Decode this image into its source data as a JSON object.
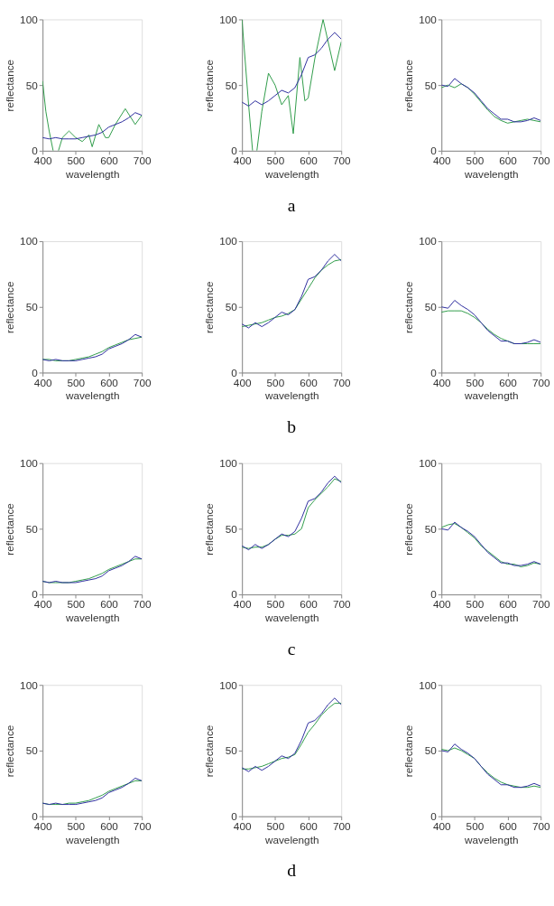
{
  "chart_data": [
    {
      "type": "line",
      "xlabel": "wavelength",
      "ylabel": "reflectance",
      "xlim": [
        400,
        700
      ],
      "ylim": [
        0,
        100
      ],
      "xticks": [
        400,
        500,
        600,
        700
      ],
      "yticks": [
        0,
        50,
        100
      ],
      "x": [
        400,
        420,
        440,
        460,
        480,
        500,
        520,
        540,
        560,
        580,
        600,
        620,
        640,
        660,
        680,
        700
      ],
      "series": [
        {
          "color": "#2d2d9e",
          "values": [
            10,
            9,
            10,
            9,
            9,
            9,
            10,
            11,
            12,
            14,
            18,
            20,
            22,
            25,
            29,
            27
          ]
        },
        {
          "color": "#2e9b48",
          "x": [
            400,
            410,
            420,
            432,
            440,
            448,
            460,
            480,
            500,
            520,
            540,
            550,
            570,
            590,
            600,
            620,
            650,
            680,
            700
          ],
          "values": [
            53,
            30,
            15,
            0,
            null,
            0,
            10,
            15,
            10,
            7,
            12,
            3,
            20,
            10,
            10,
            20,
            32,
            20,
            27
          ]
        }
      ]
    },
    {
      "type": "line",
      "xlabel": "wavelength",
      "ylabel": "reflectance",
      "xlim": [
        400,
        700
      ],
      "ylim": [
        0,
        100
      ],
      "xticks": [
        400,
        500,
        600,
        700
      ],
      "yticks": [
        0,
        50,
        100
      ],
      "annotations": [
        "a"
      ],
      "x": [
        400,
        420,
        440,
        460,
        480,
        500,
        520,
        540,
        560,
        580,
        600,
        620,
        640,
        660,
        680,
        700
      ],
      "series": [
        {
          "color": "#2d2d9e",
          "values": [
            37,
            34,
            38,
            35,
            38,
            42,
            46,
            44,
            48,
            58,
            71,
            73,
            78,
            85,
            90,
            85
          ]
        },
        {
          "color": "#2e9b48",
          "x": [
            400,
            420,
            432,
            438,
            445,
            460,
            480,
            500,
            520,
            540,
            555,
            575,
            590,
            600,
            620,
            645,
            680,
            700
          ],
          "values": [
            100,
            35,
            0,
            null,
            0,
            30,
            59,
            50,
            35,
            42,
            13,
            71,
            38,
            40,
            70,
            100,
            61,
            83
          ]
        }
      ]
    },
    {
      "type": "line",
      "xlabel": "wavelength",
      "ylabel": "reflectance",
      "xlim": [
        400,
        700
      ],
      "ylim": [
        0,
        100
      ],
      "xticks": [
        400,
        500,
        600,
        700
      ],
      "yticks": [
        0,
        50,
        100
      ],
      "x": [
        400,
        420,
        440,
        460,
        480,
        500,
        520,
        540,
        560,
        580,
        600,
        620,
        640,
        660,
        680,
        700
      ],
      "series": [
        {
          "color": "#2d2d9e",
          "values": [
            50,
            49,
            55,
            51,
            48,
            44,
            38,
            32,
            28,
            24,
            24,
            22,
            22,
            23,
            25,
            23
          ]
        },
        {
          "color": "#2e9b48",
          "values": [
            48,
            50,
            48,
            51,
            48,
            43,
            37,
            31,
            26,
            23,
            21,
            22,
            23,
            24,
            23,
            22
          ]
        }
      ]
    },
    {
      "type": "line",
      "xlabel": "wavelength",
      "ylabel": "reflectance",
      "xlim": [
        400,
        700
      ],
      "ylim": [
        0,
        100
      ],
      "xticks": [
        400,
        500,
        600,
        700
      ],
      "yticks": [
        0,
        50,
        100
      ],
      "x": [
        400,
        420,
        440,
        460,
        480,
        500,
        520,
        540,
        560,
        580,
        600,
        620,
        640,
        660,
        680,
        700
      ],
      "series": [
        {
          "color": "#2d2d9e",
          "values": [
            10,
            9,
            10,
            9,
            9,
            9,
            10,
            11,
            12,
            14,
            18,
            20,
            22,
            25,
            29,
            27
          ]
        },
        {
          "color": "#2e9b48",
          "values": [
            10,
            10,
            9,
            9,
            9,
            10,
            11,
            12,
            14,
            16,
            19,
            21,
            23,
            25,
            26,
            27
          ]
        }
      ]
    },
    {
      "type": "line",
      "xlabel": "wavelength",
      "ylabel": "reflectance",
      "xlim": [
        400,
        700
      ],
      "ylim": [
        0,
        100
      ],
      "xticks": [
        400,
        500,
        600,
        700
      ],
      "yticks": [
        0,
        50,
        100
      ],
      "annotations": [
        "b"
      ],
      "x": [
        400,
        420,
        440,
        460,
        480,
        500,
        520,
        540,
        560,
        580,
        600,
        620,
        640,
        660,
        680,
        700
      ],
      "series": [
        {
          "color": "#2d2d9e",
          "values": [
            37,
            34,
            38,
            35,
            38,
            42,
            46,
            44,
            48,
            58,
            71,
            73,
            78,
            85,
            90,
            85
          ]
        },
        {
          "color": "#2e9b48",
          "values": [
            35,
            36,
            37,
            38,
            40,
            42,
            43,
            45,
            48,
            56,
            64,
            72,
            78,
            82,
            85,
            86
          ]
        }
      ]
    },
    {
      "type": "line",
      "xlabel": "wavelength",
      "ylabel": "reflectance",
      "xlim": [
        400,
        700
      ],
      "ylim": [
        0,
        100
      ],
      "xticks": [
        400,
        500,
        600,
        700
      ],
      "yticks": [
        0,
        50,
        100
      ],
      "x": [
        400,
        420,
        440,
        460,
        480,
        500,
        520,
        540,
        560,
        580,
        600,
        620,
        640,
        660,
        680,
        700
      ],
      "series": [
        {
          "color": "#2d2d9e",
          "values": [
            50,
            49,
            55,
            51,
            48,
            44,
            38,
            32,
            28,
            24,
            24,
            22,
            22,
            23,
            25,
            23
          ]
        },
        {
          "color": "#2e9b48",
          "values": [
            46,
            47,
            47,
            47,
            45,
            42,
            38,
            33,
            29,
            26,
            24,
            22,
            22,
            22,
            22,
            22
          ]
        }
      ]
    },
    {
      "type": "line",
      "xlabel": "wavelength",
      "ylabel": "reflectance",
      "xlim": [
        400,
        700
      ],
      "ylim": [
        0,
        100
      ],
      "xticks": [
        400,
        500,
        600,
        700
      ],
      "yticks": [
        0,
        50,
        100
      ],
      "x": [
        400,
        420,
        440,
        460,
        480,
        500,
        520,
        540,
        560,
        580,
        600,
        620,
        640,
        660,
        680,
        700
      ],
      "series": [
        {
          "color": "#2d2d9e",
          "values": [
            10,
            9,
            10,
            9,
            9,
            9,
            10,
            11,
            12,
            14,
            18,
            20,
            22,
            25,
            29,
            27
          ]
        },
        {
          "color": "#2e9b48",
          "values": [
            10,
            9,
            9,
            9,
            9,
            10,
            11,
            12,
            14,
            16,
            19,
            21,
            23,
            25,
            27,
            27
          ]
        }
      ]
    },
    {
      "type": "line",
      "xlabel": "wavelength",
      "ylabel": "reflectance",
      "xlim": [
        400,
        700
      ],
      "ylim": [
        0,
        100
      ],
      "xticks": [
        400,
        500,
        600,
        700
      ],
      "yticks": [
        0,
        50,
        100
      ],
      "annotations": [
        "c"
      ],
      "x": [
        400,
        420,
        440,
        460,
        480,
        500,
        520,
        540,
        560,
        580,
        600,
        620,
        640,
        660,
        680,
        700
      ],
      "series": [
        {
          "color": "#2d2d9e",
          "values": [
            37,
            34,
            38,
            35,
            38,
            42,
            46,
            44,
            48,
            58,
            71,
            73,
            78,
            85,
            90,
            85
          ]
        },
        {
          "color": "#2e9b48",
          "values": [
            36,
            35,
            36,
            36,
            38,
            42,
            45,
            45,
            46,
            50,
            66,
            72,
            77,
            82,
            88,
            86
          ]
        }
      ]
    },
    {
      "type": "line",
      "xlabel": "wavelength",
      "ylabel": "reflectance",
      "xlim": [
        400,
        700
      ],
      "ylim": [
        0,
        100
      ],
      "xticks": [
        400,
        500,
        600,
        700
      ],
      "yticks": [
        0,
        50,
        100
      ],
      "x": [
        400,
        420,
        440,
        460,
        480,
        500,
        520,
        540,
        560,
        580,
        600,
        620,
        640,
        660,
        680,
        700
      ],
      "series": [
        {
          "color": "#2d2d9e",
          "values": [
            50,
            49,
            55,
            51,
            48,
            44,
            38,
            32,
            28,
            24,
            24,
            22,
            22,
            23,
            25,
            23
          ]
        },
        {
          "color": "#2e9b48",
          "values": [
            51,
            53,
            54,
            51,
            47,
            43,
            37,
            33,
            29,
            25,
            23,
            23,
            21,
            22,
            24,
            23
          ]
        }
      ]
    },
    {
      "type": "line",
      "xlabel": "wavelength",
      "ylabel": "reflectance",
      "xlim": [
        400,
        700
      ],
      "ylim": [
        0,
        100
      ],
      "xticks": [
        400,
        500,
        600,
        700
      ],
      "yticks": [
        0,
        50,
        100
      ],
      "x": [
        400,
        420,
        440,
        460,
        480,
        500,
        520,
        540,
        560,
        580,
        600,
        620,
        640,
        660,
        680,
        700
      ],
      "series": [
        {
          "color": "#2d2d9e",
          "values": [
            10,
            9,
            10,
            9,
            9,
            9,
            10,
            11,
            12,
            14,
            18,
            20,
            22,
            25,
            29,
            27
          ]
        },
        {
          "color": "#2e9b48",
          "values": [
            10,
            9,
            9,
            9,
            10,
            10,
            11,
            12,
            14,
            16,
            19,
            21,
            23,
            25,
            27,
            27
          ]
        }
      ]
    },
    {
      "type": "line",
      "xlabel": "wavelength",
      "ylabel": "reflectance",
      "xlim": [
        400,
        700
      ],
      "ylim": [
        0,
        100
      ],
      "xticks": [
        400,
        500,
        600,
        700
      ],
      "yticks": [
        0,
        50,
        100
      ],
      "annotations": [
        "d"
      ],
      "x": [
        400,
        420,
        440,
        460,
        480,
        500,
        520,
        540,
        560,
        580,
        600,
        620,
        640,
        660,
        680,
        700
      ],
      "series": [
        {
          "color": "#2d2d9e",
          "values": [
            37,
            34,
            38,
            35,
            38,
            42,
            46,
            44,
            48,
            58,
            71,
            73,
            78,
            85,
            90,
            85
          ]
        },
        {
          "color": "#2e9b48",
          "values": [
            36,
            36,
            37,
            38,
            40,
            42,
            44,
            45,
            47,
            55,
            64,
            70,
            77,
            82,
            86,
            86
          ]
        }
      ]
    },
    {
      "type": "line",
      "xlabel": "wavelength",
      "ylabel": "reflectance",
      "xlim": [
        400,
        700
      ],
      "ylim": [
        0,
        100
      ],
      "xticks": [
        400,
        500,
        600,
        700
      ],
      "yticks": [
        0,
        50,
        100
      ],
      "x": [
        400,
        420,
        440,
        460,
        480,
        500,
        520,
        540,
        560,
        580,
        600,
        620,
        640,
        660,
        680,
        700
      ],
      "series": [
        {
          "color": "#2d2d9e",
          "values": [
            50,
            49,
            55,
            51,
            48,
            44,
            38,
            32,
            28,
            24,
            24,
            22,
            22,
            23,
            25,
            23
          ]
        },
        {
          "color": "#2e9b48",
          "values": [
            51,
            50,
            52,
            50,
            47,
            44,
            38,
            33,
            29,
            26,
            24,
            23,
            22,
            22,
            23,
            22
          ]
        }
      ]
    }
  ]
}
